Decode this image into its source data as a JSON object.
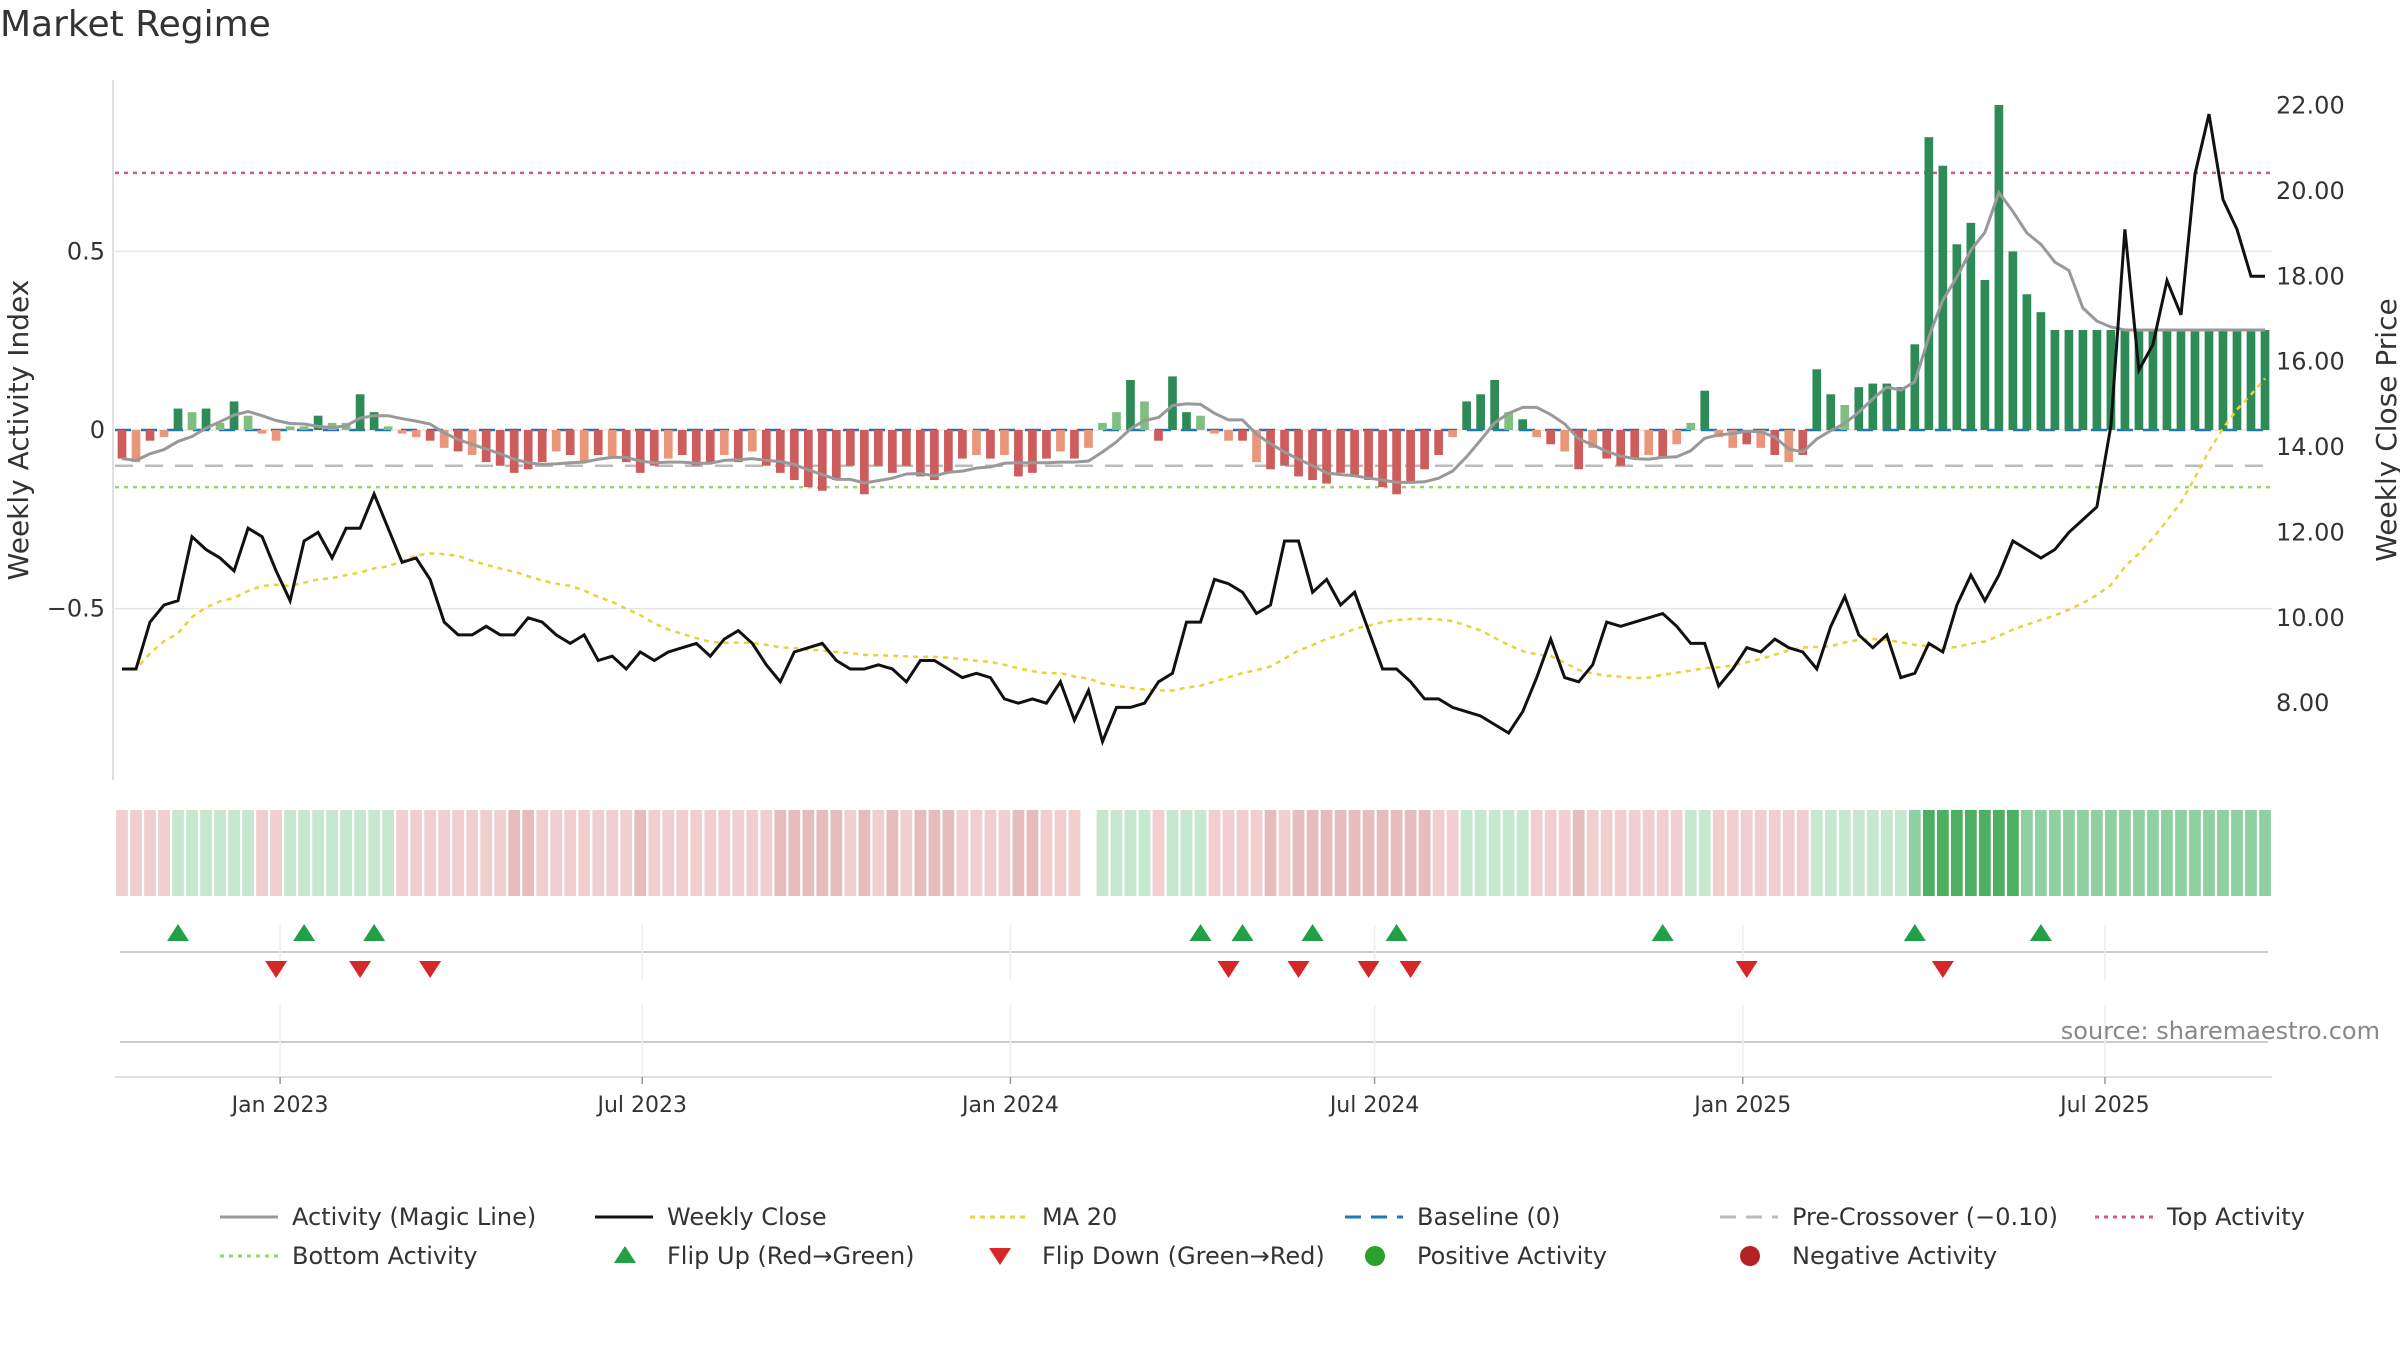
{
  "page": {
    "title": "Market Regime"
  },
  "colors": {
    "pos_strong": "#2e8b57",
    "pos_light": "#7fbf7f",
    "neg_strong": "#cd5c5c",
    "neg_light": "#e9967a",
    "magic_line": "#999999",
    "close": "#111111",
    "ma20": "#e8d43a",
    "baseline": "#1f77b4",
    "precross": "#bbbbbb",
    "top": "#d05a7a",
    "bottom": "#9ed36a",
    "flip_up": "#22a046",
    "flip_down": "#d62728",
    "pos_dot": "#2ca02c",
    "neg_dot": "#b22222"
  },
  "chart_data": {
    "type": "bar",
    "title": "Market Regime",
    "ylabel": "Weekly Activity Index",
    "y2label": "Weekly Close Price",
    "ylim": [
      -0.98,
      0.98
    ],
    "y2lim": [
      6.2,
      22.6
    ],
    "x_range": [
      "2022-10-14",
      "2025-09-19"
    ],
    "frequency": "weekly",
    "y_ticks": [
      {
        "v": 0.5,
        "label": "0.5"
      },
      {
        "v": 0,
        "label": "0"
      },
      {
        "v": -0.5,
        "label": "−0.5"
      }
    ],
    "y2_ticks": [
      {
        "v": 8,
        "label": "8.00"
      },
      {
        "v": 10,
        "label": "10.00"
      },
      {
        "v": 12,
        "label": "12.00"
      },
      {
        "v": 14,
        "label": "14.00"
      },
      {
        "v": 16,
        "label": "16.00"
      },
      {
        "v": 18,
        "label": "18.00"
      },
      {
        "v": 20,
        "label": "20.00"
      },
      {
        "v": 22,
        "label": "22.00"
      }
    ],
    "x_ticks": [
      {
        "v": "2023-01-01",
        "label": "Jan 2023"
      },
      {
        "v": "2023-07-01",
        "label": "Jul 2023"
      },
      {
        "v": "2024-01-01",
        "label": "Jan 2024"
      },
      {
        "v": "2024-07-01",
        "label": "Jul 2024"
      },
      {
        "v": "2025-01-01",
        "label": "Jan 2025"
      },
      {
        "v": "2025-07-01",
        "label": "Jul 2025"
      }
    ],
    "reference_lines": {
      "baseline": 0,
      "pre_crossover": -0.1,
      "top_activity": 0.72,
      "bottom_activity": -0.16
    },
    "grid": true,
    "legend_position": "bottom",
    "source_note": "source: sharemaestro.com",
    "activity_keyframes": [
      [
        0,
        -0.08
      ],
      [
        1,
        -0.09
      ],
      [
        2,
        -0.03
      ],
      [
        3,
        -0.02
      ],
      [
        4,
        0.06
      ],
      [
        5,
        0.05
      ],
      [
        6,
        0.06
      ],
      [
        7,
        0.02
      ],
      [
        8,
        0.08
      ],
      [
        9,
        0.04
      ],
      [
        10,
        -0.01
      ],
      [
        11,
        -0.03
      ],
      [
        12,
        0.01
      ],
      [
        13,
        0.01
      ],
      [
        14,
        0.04
      ],
      [
        15,
        0.02
      ],
      [
        16,
        0.02
      ],
      [
        17,
        0.1
      ],
      [
        18,
        0.05
      ],
      [
        19,
        0.01
      ],
      [
        20,
        -0.01
      ],
      [
        21,
        -0.02
      ],
      [
        22,
        -0.03
      ],
      [
        23,
        -0.05
      ],
      [
        24,
        -0.06
      ],
      [
        25,
        -0.07
      ],
      [
        26,
        -0.09
      ],
      [
        27,
        -0.1
      ],
      [
        28,
        -0.12
      ],
      [
        29,
        -0.11
      ],
      [
        30,
        -0.09
      ],
      [
        31,
        -0.06
      ],
      [
        32,
        -0.07
      ],
      [
        33,
        -0.09
      ],
      [
        34,
        -0.07
      ],
      [
        35,
        -0.08
      ],
      [
        36,
        -0.09
      ],
      [
        37,
        -0.12
      ],
      [
        38,
        -0.1
      ],
      [
        39,
        -0.08
      ],
      [
        40,
        -0.07
      ],
      [
        41,
        -0.1
      ],
      [
        42,
        -0.09
      ],
      [
        43,
        -0.07
      ],
      [
        44,
        -0.09
      ],
      [
        45,
        -0.06
      ],
      [
        46,
        -0.1
      ],
      [
        47,
        -0.12
      ],
      [
        48,
        -0.14
      ],
      [
        49,
        -0.16
      ],
      [
        50,
        -0.17
      ],
      [
        51,
        -0.14
      ],
      [
        52,
        -0.1
      ],
      [
        53,
        -0.18
      ],
      [
        54,
        -0.1
      ],
      [
        55,
        -0.12
      ],
      [
        56,
        -0.1
      ],
      [
        57,
        -0.13
      ],
      [
        58,
        -0.14
      ],
      [
        59,
        -0.12
      ],
      [
        60,
        -0.08
      ],
      [
        61,
        -0.07
      ],
      [
        62,
        -0.08
      ],
      [
        63,
        -0.07
      ],
      [
        64,
        -0.13
      ],
      [
        65,
        -0.12
      ],
      [
        66,
        -0.08
      ],
      [
        67,
        -0.06
      ],
      [
        68,
        -0.08
      ],
      [
        69,
        -0.05
      ],
      [
        70,
        0.02
      ],
      [
        71,
        0.05
      ],
      [
        72,
        0.14
      ],
      [
        73,
        0.08
      ],
      [
        74,
        -0.03
      ],
      [
        75,
        0.15
      ],
      [
        76,
        0.05
      ],
      [
        77,
        0.04
      ],
      [
        78,
        -0.01
      ],
      [
        79,
        -0.03
      ],
      [
        80,
        -0.03
      ],
      [
        81,
        -0.09
      ],
      [
        82,
        -0.11
      ],
      [
        83,
        -0.1
      ],
      [
        84,
        -0.13
      ],
      [
        85,
        -0.14
      ],
      [
        86,
        -0.15
      ],
      [
        87,
        -0.12
      ],
      [
        88,
        -0.13
      ],
      [
        89,
        -0.14
      ],
      [
        90,
        -0.16
      ],
      [
        91,
        -0.18
      ],
      [
        92,
        -0.15
      ],
      [
        93,
        -0.11
      ],
      [
        94,
        -0.07
      ],
      [
        95,
        -0.02
      ],
      [
        96,
        0.08
      ],
      [
        97,
        0.1
      ],
      [
        98,
        0.14
      ],
      [
        99,
        0.05
      ],
      [
        100,
        0.03
      ],
      [
        101,
        -0.02
      ],
      [
        102,
        -0.04
      ],
      [
        103,
        -0.06
      ],
      [
        104,
        -0.11
      ],
      [
        105,
        -0.05
      ],
      [
        106,
        -0.08
      ],
      [
        107,
        -0.1
      ],
      [
        108,
        -0.08
      ],
      [
        109,
        -0.07
      ],
      [
        110,
        -0.08
      ],
      [
        111,
        -0.04
      ],
      [
        112,
        0.02
      ],
      [
        113,
        0.11
      ],
      [
        114,
        -0.02
      ],
      [
        115,
        -0.05
      ],
      [
        116,
        -0.04
      ],
      [
        117,
        -0.05
      ],
      [
        118,
        -0.07
      ],
      [
        119,
        -0.09
      ],
      [
        120,
        -0.07
      ],
      [
        121,
        0.17
      ],
      [
        122,
        0.1
      ],
      [
        123,
        0.07
      ],
      [
        124,
        0.12
      ],
      [
        125,
        0.13
      ],
      [
        126,
        0.13
      ],
      [
        127,
        0.12
      ],
      [
        128,
        0.24
      ],
      [
        129,
        0.82
      ],
      [
        130,
        0.74
      ],
      [
        131,
        0.52
      ],
      [
        132,
        0.58
      ],
      [
        133,
        0.42
      ],
      [
        134,
        0.91
      ],
      [
        135,
        0.5
      ],
      [
        136,
        0.38
      ],
      [
        137,
        0.33
      ],
      [
        138,
        0.28
      ]
    ],
    "close_keyframes": [
      [
        0,
        8.8
      ],
      [
        1,
        8.8
      ],
      [
        2,
        9.9
      ],
      [
        3,
        10.3
      ],
      [
        4,
        10.4
      ],
      [
        5,
        11.9
      ],
      [
        6,
        11.6
      ],
      [
        7,
        11.4
      ],
      [
        8,
        11.1
      ],
      [
        9,
        12.1
      ],
      [
        10,
        11.9
      ],
      [
        11,
        11.1
      ],
      [
        12,
        10.4
      ],
      [
        13,
        11.8
      ],
      [
        14,
        12.0
      ],
      [
        15,
        11.4
      ],
      [
        16,
        12.1
      ],
      [
        17,
        12.1
      ],
      [
        18,
        12.9
      ],
      [
        19,
        12.1
      ],
      [
        20,
        11.3
      ],
      [
        21,
        11.4
      ],
      [
        22,
        10.9
      ],
      [
        23,
        9.9
      ],
      [
        24,
        9.6
      ],
      [
        25,
        9.6
      ],
      [
        26,
        9.8
      ],
      [
        27,
        9.6
      ],
      [
        28,
        9.6
      ],
      [
        29,
        10.0
      ],
      [
        30,
        9.9
      ],
      [
        31,
        9.6
      ],
      [
        32,
        9.4
      ],
      [
        33,
        9.6
      ],
      [
        34,
        9.0
      ],
      [
        35,
        9.1
      ],
      [
        36,
        8.8
      ],
      [
        37,
        9.2
      ],
      [
        38,
        9.0
      ],
      [
        39,
        9.2
      ],
      [
        40,
        9.3
      ],
      [
        41,
        9.4
      ],
      [
        42,
        9.1
      ],
      [
        43,
        9.5
      ],
      [
        44,
        9.7
      ],
      [
        45,
        9.4
      ],
      [
        46,
        8.9
      ],
      [
        47,
        8.5
      ],
      [
        48,
        9.2
      ],
      [
        49,
        9.3
      ],
      [
        50,
        9.4
      ],
      [
        51,
        9.0
      ],
      [
        52,
        8.8
      ],
      [
        53,
        8.8
      ],
      [
        54,
        8.9
      ],
      [
        55,
        8.8
      ],
      [
        56,
        8.5
      ],
      [
        57,
        9.0
      ],
      [
        58,
        9.0
      ],
      [
        59,
        8.8
      ],
      [
        60,
        8.6
      ],
      [
        61,
        8.7
      ],
      [
        62,
        8.6
      ],
      [
        63,
        8.1
      ],
      [
        64,
        8.0
      ],
      [
        65,
        8.1
      ],
      [
        66,
        8.0
      ],
      [
        67,
        8.5
      ],
      [
        68,
        7.6
      ],
      [
        69,
        8.3
      ],
      [
        70,
        7.1
      ],
      [
        71,
        7.9
      ],
      [
        72,
        7.9
      ],
      [
        73,
        8.0
      ],
      [
        74,
        8.5
      ],
      [
        75,
        8.7
      ],
      [
        76,
        9.9
      ],
      [
        77,
        9.9
      ],
      [
        78,
        10.9
      ],
      [
        79,
        10.8
      ],
      [
        80,
        10.6
      ],
      [
        81,
        10.1
      ],
      [
        82,
        10.3
      ],
      [
        83,
        11.8
      ],
      [
        84,
        11.8
      ],
      [
        85,
        10.6
      ],
      [
        86,
        10.9
      ],
      [
        87,
        10.3
      ],
      [
        88,
        10.6
      ],
      [
        89,
        9.7
      ],
      [
        90,
        8.8
      ],
      [
        91,
        8.8
      ],
      [
        92,
        8.5
      ],
      [
        93,
        8.1
      ],
      [
        94,
        8.1
      ],
      [
        95,
        7.9
      ],
      [
        96,
        7.8
      ],
      [
        97,
        7.7
      ],
      [
        98,
        7.5
      ],
      [
        99,
        7.3
      ],
      [
        100,
        7.8
      ],
      [
        101,
        8.6
      ],
      [
        102,
        9.5
      ],
      [
        103,
        8.6
      ],
      [
        104,
        8.5
      ],
      [
        105,
        8.9
      ],
      [
        106,
        9.9
      ],
      [
        107,
        9.8
      ],
      [
        108,
        9.9
      ],
      [
        109,
        10.0
      ],
      [
        110,
        10.1
      ],
      [
        111,
        9.8
      ],
      [
        112,
        9.4
      ],
      [
        113,
        9.4
      ],
      [
        114,
        8.4
      ],
      [
        115,
        8.8
      ],
      [
        116,
        9.3
      ],
      [
        117,
        9.2
      ],
      [
        118,
        9.5
      ],
      [
        119,
        9.3
      ],
      [
        120,
        9.2
      ],
      [
        121,
        8.8
      ],
      [
        122,
        9.8
      ],
      [
        123,
        10.5
      ],
      [
        124,
        9.6
      ],
      [
        125,
        9.3
      ],
      [
        126,
        9.6
      ],
      [
        127,
        8.6
      ],
      [
        128,
        8.7
      ],
      [
        129,
        9.4
      ],
      [
        130,
        9.2
      ],
      [
        131,
        10.3
      ],
      [
        132,
        11.0
      ],
      [
        133,
        10.4
      ],
      [
        134,
        11.0
      ],
      [
        135,
        11.8
      ],
      [
        136,
        11.6
      ],
      [
        137,
        11.4
      ],
      [
        138,
        11.6
      ],
      [
        139,
        12.0
      ],
      [
        140,
        12.3
      ],
      [
        141,
        12.6
      ],
      [
        142,
        14.5
      ],
      [
        143,
        19.1
      ],
      [
        144,
        15.8
      ],
      [
        145,
        16.4
      ],
      [
        146,
        17.9
      ],
      [
        147,
        17.1
      ],
      [
        148,
        20.4
      ],
      [
        149,
        21.8
      ],
      [
        150,
        19.8
      ],
      [
        151,
        19.1
      ],
      [
        152,
        18.0
      ]
    ],
    "flip_up_weeks": [
      4,
      13,
      18,
      77,
      80,
      85,
      91,
      110,
      128,
      137
    ],
    "flip_down_weeks": [
      11,
      17,
      22,
      79,
      84,
      89,
      92,
      116,
      130
    ],
    "ribbon_gap_weeks": [
      69
    ],
    "series": [
      {
        "name": "Activity (Magic Line)",
        "kind": "line"
      },
      {
        "name": "Weekly Close",
        "kind": "line",
        "axis": "right"
      },
      {
        "name": "MA 20",
        "kind": "line",
        "axis": "right"
      },
      {
        "name": "Baseline (0)",
        "kind": "hline"
      },
      {
        "name": "Pre-Crossover (−0.10)",
        "kind": "hline"
      },
      {
        "name": "Top Activity",
        "kind": "hline"
      },
      {
        "name": "Bottom Activity",
        "kind": "hline"
      },
      {
        "name": "Flip Up (Red→Green)",
        "kind": "marker"
      },
      {
        "name": "Flip Down (Green→Red)",
        "kind": "marker"
      },
      {
        "name": "Positive Activity",
        "kind": "bar"
      },
      {
        "name": "Negative Activity",
        "kind": "bar"
      }
    ]
  }
}
